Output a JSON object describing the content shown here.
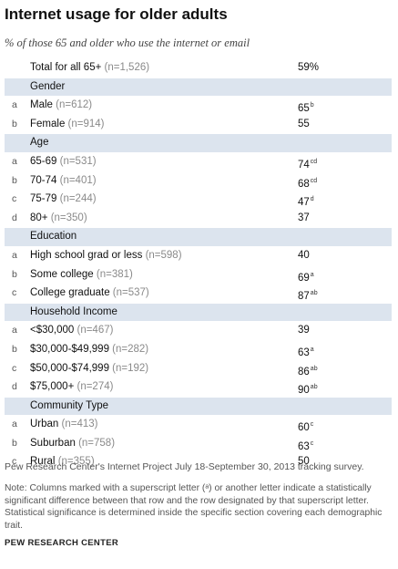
{
  "title": "Internet usage for older adults",
  "subtitle": "% of those 65 and older who use the internet or email",
  "chart_data": {
    "type": "table",
    "value_unit": "%",
    "total": {
      "label": "Total for all 65+",
      "n": "(n=1,526)",
      "value": "59%"
    },
    "sections": [
      {
        "name": "Gender",
        "rows": [
          {
            "letter": "a",
            "label": "Male",
            "n": "(n=612)",
            "value": 65,
            "sup": "b"
          },
          {
            "letter": "b",
            "label": "Female",
            "n": "(n=914)",
            "value": 55,
            "sup": ""
          }
        ]
      },
      {
        "name": "Age",
        "rows": [
          {
            "letter": "a",
            "label": "65-69",
            "n": "(n=531)",
            "value": 74,
            "sup": "cd"
          },
          {
            "letter": "b",
            "label": "70-74",
            "n": "(n=401)",
            "value": 68,
            "sup": "cd"
          },
          {
            "letter": "c",
            "label": "75-79",
            "n": "(n=244)",
            "value": 47,
            "sup": "d"
          },
          {
            "letter": "d",
            "label": "80+",
            "n": "(n=350)",
            "value": 37,
            "sup": ""
          }
        ]
      },
      {
        "name": "Education",
        "rows": [
          {
            "letter": "a",
            "label": "High school grad or less",
            "n": "(n=598)",
            "value": 40,
            "sup": ""
          },
          {
            "letter": "b",
            "label": "Some college",
            "n": "(n=381)",
            "value": 69,
            "sup": "a"
          },
          {
            "letter": "c",
            "label": "College graduate",
            "n": "(n=537)",
            "value": 87,
            "sup": "ab"
          }
        ]
      },
      {
        "name": "Household Income",
        "rows": [
          {
            "letter": "a",
            "label": "<$30,000",
            "n": "(n=467)",
            "value": 39,
            "sup": ""
          },
          {
            "letter": "b",
            "label": "$30,000-$49,999",
            "n": "(n=282)",
            "value": 63,
            "sup": "a"
          },
          {
            "letter": "c",
            "label": "$50,000-$74,999",
            "n": "(n=192)",
            "value": 86,
            "sup": "ab"
          },
          {
            "letter": "d",
            "label": "$75,000+",
            "n": "(n=274)",
            "value": 90,
            "sup": "ab"
          }
        ]
      },
      {
        "name": "Community Type",
        "rows": [
          {
            "letter": "a",
            "label": "Urban",
            "n": "(n=413)",
            "value": 60,
            "sup": "c"
          },
          {
            "letter": "b",
            "label": "Suburban",
            "n": "(n=758)",
            "value": 63,
            "sup": "c"
          },
          {
            "letter": "c",
            "label": "Rural",
            "n": "(n=355)",
            "value": 50,
            "sup": ""
          }
        ]
      }
    ]
  },
  "source": "Pew Research Center's Internet Project July 18-September 30, 2013 tracking survey.",
  "note": "Note: Columns marked with a superscript letter (ᵃ) or another letter indicate a statistically significant difference between that row and the row designated by that superscript letter. Statistical significance is determined inside the specific section covering each demographic trait.",
  "brand": "PEW RESEARCH CENTER",
  "colors": {
    "header_band": "#dce4ee",
    "n_text": "#8a8a8a"
  }
}
